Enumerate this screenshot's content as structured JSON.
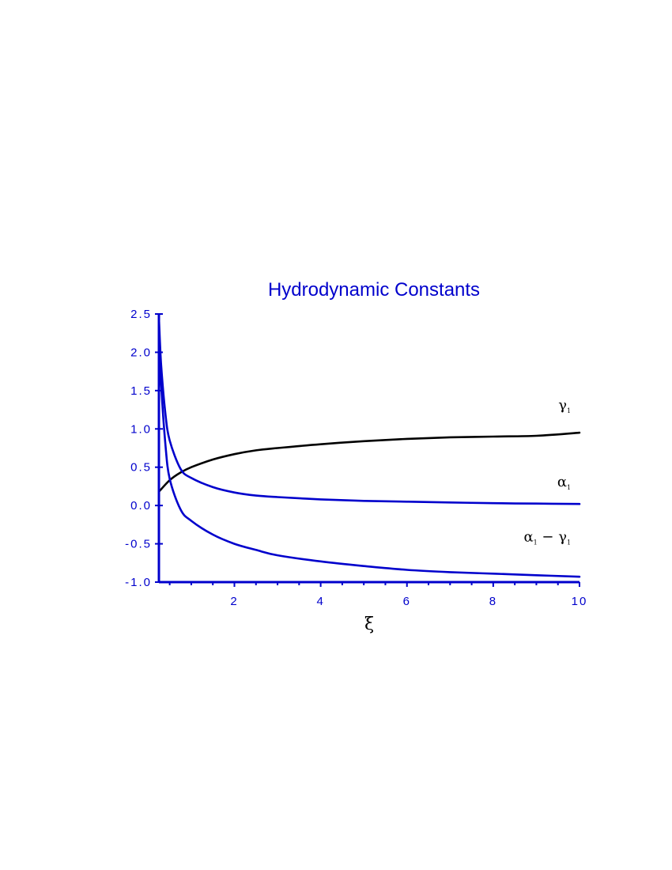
{
  "chart_data": {
    "type": "line",
    "title": "Hydrodynamic  Constants",
    "xlabel": "ξ",
    "ylabel": "",
    "xlim": [
      0.25,
      10
    ],
    "ylim": [
      -1.0,
      2.5
    ],
    "x_ticks": [
      2,
      4,
      6,
      8,
      10
    ],
    "x_tick_labels": [
      "2",
      "4",
      "6",
      "8",
      "10"
    ],
    "y_ticks": [
      -1.0,
      -0.5,
      0.0,
      0.5,
      1.0,
      1.5,
      2.0,
      2.5
    ],
    "y_tick_labels": [
      "-1.0",
      "-0.5",
      "0.0",
      "0.5",
      "1.0",
      "1.5",
      "2.0",
      "2.5"
    ],
    "grid": false,
    "legend": "none",
    "series": [
      {
        "name": "γ1",
        "color": "#000000",
        "x": [
          0.25,
          0.5,
          0.75,
          1,
          1.5,
          2,
          2.5,
          3,
          4,
          5,
          6,
          7,
          8,
          9,
          10
        ],
        "y": [
          0.18,
          0.33,
          0.43,
          0.5,
          0.6,
          0.67,
          0.72,
          0.75,
          0.8,
          0.84,
          0.87,
          0.89,
          0.9,
          0.91,
          0.95
        ]
      },
      {
        "name": "α1",
        "color": "#0000cc",
        "x": [
          0.25,
          0.3,
          0.4,
          0.5,
          0.75,
          1,
          1.5,
          2,
          2.5,
          3,
          4,
          5,
          6,
          7,
          8,
          9,
          10
        ],
        "y": [
          2.45,
          1.85,
          1.2,
          0.85,
          0.48,
          0.36,
          0.24,
          0.17,
          0.13,
          0.11,
          0.08,
          0.06,
          0.05,
          0.04,
          0.03,
          0.025,
          0.02
        ]
      },
      {
        "name": "α1 − γ1",
        "color": "#0000cc",
        "x": [
          0.25,
          0.3,
          0.4,
          0.5,
          0.75,
          1,
          1.5,
          2,
          2.5,
          3,
          4,
          5,
          6,
          7,
          8,
          9,
          10
        ],
        "y": [
          2.3,
          1.6,
          0.8,
          0.35,
          -0.05,
          -0.2,
          -0.38,
          -0.5,
          -0.58,
          -0.65,
          -0.73,
          -0.79,
          -0.84,
          -0.87,
          -0.89,
          -0.91,
          -0.93
        ]
      }
    ],
    "annotations": [
      {
        "series": 0,
        "main": "γ",
        "sub": "1",
        "at": [
          9.8,
          1.25
        ]
      },
      {
        "series": 1,
        "main": "α",
        "sub": "1",
        "at": [
          9.8,
          0.25
        ]
      },
      {
        "series": 2,
        "main": "α",
        "sub": "1",
        "mid": " − γ",
        "sub2": "1",
        "at": [
          9.8,
          -0.47
        ]
      }
    ]
  }
}
